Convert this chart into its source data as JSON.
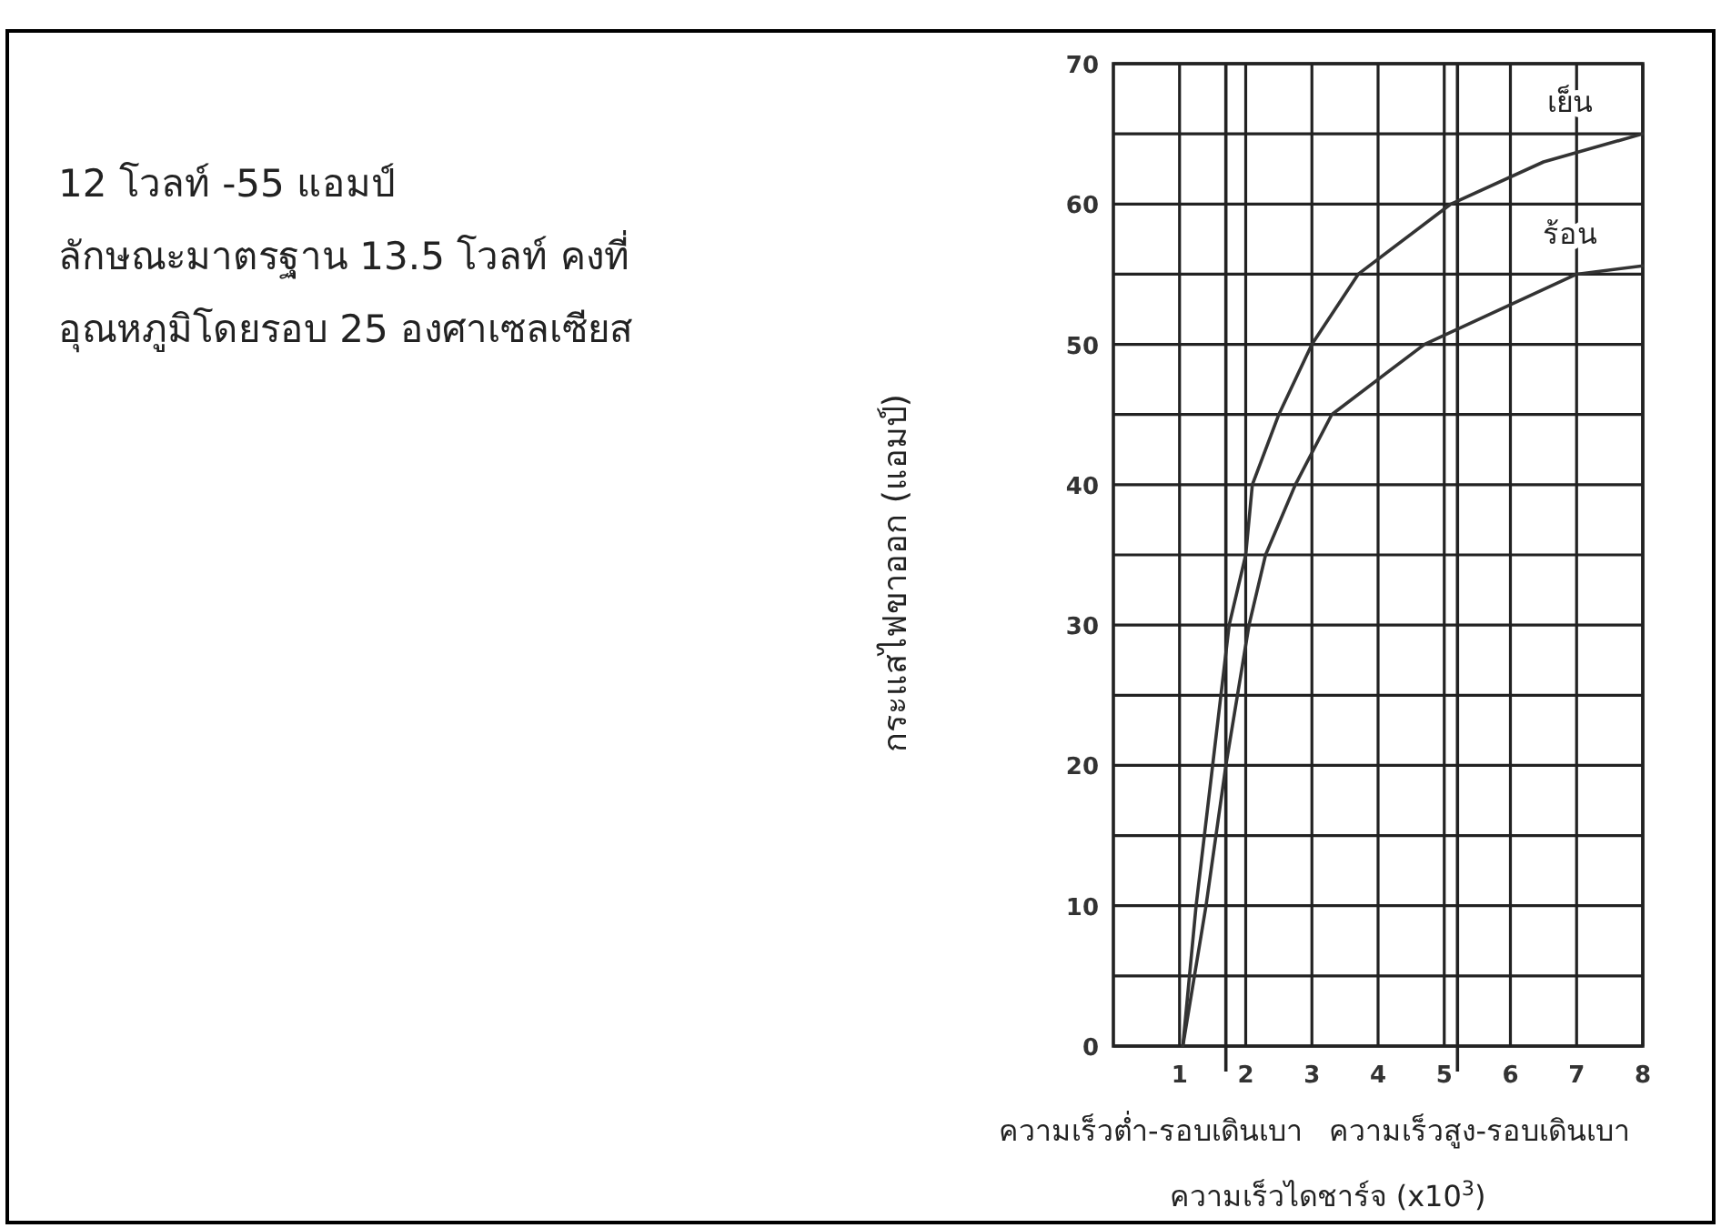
{
  "chart_data": {
    "type": "line",
    "xlabel": "ความเร็วไดชาร์จ (x10$^{3}$)",
    "ylabel": "กระแสไฟขาออก (แอมป์)",
    "annotations": [
      "12 โวลท์ -55 แอมป์",
      "ลักษณะมาตรฐาน 13.5 โวลท์ คงที่",
      "อุณหภูมิโดยรอบ 25 องศาเซลเซียส"
    ],
    "series": [
      {
        "name": "เย็น",
        "color": "#333333",
        "x": [
          1.05,
          1.25,
          1.5,
          1.75,
          2.0,
          2.1,
          2.5,
          3.0,
          3.7,
          5.1,
          6.5,
          8.0
        ],
        "values": [
          0,
          10,
          20,
          30,
          35,
          40,
          45,
          50,
          55,
          60,
          63,
          65
        ]
      },
      {
        "name": "ร้อน",
        "color": "#333333",
        "x": [
          1.05,
          1.4,
          1.7,
          2.05,
          2.3,
          2.75,
          3.3,
          4.7,
          7.0,
          8.0
        ],
        "values": [
          0,
          10,
          20,
          30,
          35,
          40,
          45,
          50,
          55,
          55.6
        ]
      }
    ],
    "xlim": [
      0,
      8
    ],
    "ylim": [
      0,
      70
    ],
    "xticks": [
      1,
      2,
      3,
      4,
      5,
      6,
      7,
      8
    ],
    "yticks": [
      0,
      {
        "value": 5,
        "label": null
      },
      10,
      {
        "value": 15,
        "label": null
      },
      20,
      {
        "value": 25,
        "label": null
      },
      30,
      {
        "value": 35,
        "label": null
      },
      40,
      {
        "value": 45,
        "label": null
      },
      50,
      {
        "value": 55,
        "label": null
      },
      60,
      {
        "value": 65,
        "label": null
      },
      70
    ],
    "ref_lines": [
      {
        "axis": "x",
        "value": 1.7,
        "label": "ความเร็วต่ำ-รอบเดินเบา"
      },
      {
        "axis": "x",
        "value": 5.2,
        "label": "ความเร็วสูง-รอบเดินเบา"
      }
    ],
    "grid": true,
    "marker": "none",
    "line_style": "solid"
  }
}
